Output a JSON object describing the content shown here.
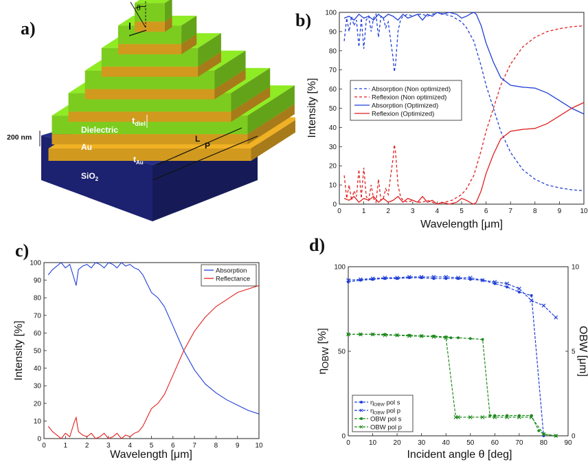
{
  "panel_labels": [
    "a)",
    "b)",
    "c)",
    "d)"
  ],
  "diagram": {
    "angle_label": "θ",
    "l_label": "l",
    "t_diel_label": "t",
    "t_diel_sub": "diel",
    "dielectric_label": "Dielectric",
    "L_label": "L",
    "P_label": "P",
    "thickness_label": "200 nm",
    "au_label": "Au",
    "t_au_label": "t",
    "t_au_sub": "Au",
    "sio2_label": "SiO",
    "sio2_sub": "2",
    "colors": {
      "dielectric": "#7ccc1f",
      "gold": "#d19a1f",
      "substrate": "#1c2270"
    }
  },
  "chart_data": [
    {
      "id": "b",
      "type": "line",
      "xlabel": "Wavelength [μm]",
      "ylabel": "Intensity [%]",
      "xlim": [
        0,
        10
      ],
      "ylim": [
        0,
        100
      ],
      "xticks": [
        0,
        1,
        2,
        3,
        4,
        5,
        6,
        7,
        8,
        9,
        10
      ],
      "yticks": [
        0,
        10,
        20,
        30,
        40,
        50,
        60,
        70,
        80,
        90,
        100
      ],
      "legend_position": "center-left",
      "series": [
        {
          "name": "Absorption (Non optimized)",
          "color": "#1f3fd6",
          "dash": "dashed",
          "x": [
            0.2,
            0.3,
            0.4,
            0.5,
            0.6,
            0.7,
            0.8,
            0.9,
            1.0,
            1.1,
            1.2,
            1.3,
            1.4,
            1.5,
            1.6,
            1.7,
            1.8,
            1.9,
            2.0,
            2.1,
            2.2,
            2.25,
            2.3,
            2.4,
            2.5,
            2.6,
            2.8,
            3.0,
            3.2,
            3.4,
            3.6,
            3.8,
            4.0,
            4.3,
            4.6,
            5.0,
            5.2,
            5.5,
            5.8,
            6.0,
            6.3,
            6.6,
            7.0,
            7.5,
            8.0,
            8.5,
            9.0,
            9.5,
            10.0
          ],
          "y": [
            85,
            97,
            90,
            98,
            93,
            96,
            82,
            97,
            81,
            96,
            98,
            90,
            97,
            99,
            87,
            98,
            97,
            92,
            95,
            85,
            76,
            69,
            73,
            90,
            96,
            98,
            99,
            98,
            99,
            99,
            98,
            99,
            100,
            99,
            98,
            95,
            92,
            85,
            72,
            62,
            50,
            38,
            27,
            18,
            13,
            10,
            8.5,
            7.5,
            7
          ]
        },
        {
          "name": "Reflexion (Non optimized)",
          "color": "#e01f1f",
          "dash": "dashed",
          "x": [
            0.2,
            0.3,
            0.4,
            0.5,
            0.6,
            0.7,
            0.8,
            0.9,
            1.0,
            1.1,
            1.2,
            1.3,
            1.4,
            1.5,
            1.6,
            1.7,
            1.8,
            1.9,
            2.0,
            2.1,
            2.2,
            2.25,
            2.3,
            2.4,
            2.5,
            2.6,
            2.8,
            3.0,
            3.2,
            3.4,
            3.6,
            3.8,
            4.0,
            4.3,
            4.6,
            5.0,
            5.2,
            5.5,
            5.8,
            6.0,
            6.3,
            6.6,
            7.0,
            7.5,
            8.0,
            8.5,
            9.0,
            9.5,
            10.0
          ],
          "y": [
            15,
            3,
            10,
            2,
            7,
            4,
            18,
            3,
            19,
            4,
            2,
            10,
            3,
            1,
            13,
            2,
            3,
            8,
            5,
            15,
            24,
            31,
            27,
            10,
            4,
            2,
            1,
            2,
            1,
            1,
            2,
            1,
            0,
            1,
            2,
            5,
            8,
            15,
            28,
            38,
            50,
            62,
            73,
            82,
            87,
            90,
            91.5,
            92.5,
            93
          ]
        },
        {
          "name": "Absorption (Optimized)",
          "color": "#1f3fd6",
          "dash": "solid",
          "x": [
            0.2,
            0.4,
            0.6,
            0.8,
            1.0,
            1.2,
            1.4,
            1.6,
            1.8,
            2.0,
            2.2,
            2.4,
            2.6,
            2.8,
            3.0,
            3.2,
            3.4,
            3.6,
            3.8,
            4.0,
            4.2,
            4.5,
            4.8,
            5.0,
            5.2,
            5.4,
            5.5,
            5.6,
            5.8,
            6.0,
            6.3,
            6.6,
            7.0,
            7.5,
            8.0,
            8.5,
            9.0,
            9.5,
            10.0
          ],
          "y": [
            97,
            98,
            96,
            99,
            97,
            98,
            96,
            99,
            97,
            99,
            98,
            96,
            99,
            97,
            98,
            99,
            96,
            99,
            98,
            100,
            99,
            100,
            99,
            97,
            98,
            99.5,
            100,
            99,
            93,
            84,
            74,
            66,
            62,
            61,
            60.5,
            58,
            54,
            50,
            47
          ]
        },
        {
          "name": "Reflexion (Optimized)",
          "color": "#e01f1f",
          "dash": "solid",
          "x": [
            0.2,
            0.4,
            0.6,
            0.8,
            1.0,
            1.2,
            1.4,
            1.6,
            1.8,
            2.0,
            2.2,
            2.4,
            2.6,
            2.8,
            3.0,
            3.2,
            3.4,
            3.6,
            3.8,
            4.0,
            4.2,
            4.5,
            4.8,
            5.0,
            5.2,
            5.4,
            5.5,
            5.6,
            5.8,
            6.0,
            6.3,
            6.6,
            7.0,
            7.5,
            8.0,
            8.5,
            9.0,
            9.5,
            10.0
          ],
          "y": [
            3,
            2,
            4,
            1,
            3,
            2,
            4,
            1,
            3,
            1,
            2,
            4,
            1,
            3,
            2,
            1,
            4,
            1,
            2,
            0,
            1,
            0,
            1,
            3,
            2,
            0.5,
            0,
            1,
            7,
            16,
            26,
            34,
            38,
            39,
            39.5,
            42,
            46,
            50,
            53
          ]
        }
      ]
    },
    {
      "id": "c",
      "type": "line",
      "xlabel": "Wavelength [μm]",
      "ylabel": "Intensity [%]",
      "xlim": [
        0,
        10
      ],
      "ylim": [
        0,
        100
      ],
      "xticks": [
        0,
        1,
        2,
        3,
        4,
        5,
        6,
        7,
        8,
        9,
        10
      ],
      "yticks": [
        0,
        10,
        20,
        30,
        40,
        50,
        60,
        70,
        80,
        90,
        100
      ],
      "legend_position": "top-right",
      "series": [
        {
          "name": "Absorption",
          "color": "#1f3fd6",
          "dash": "solid",
          "x": [
            0.2,
            0.4,
            0.6,
            0.8,
            1.0,
            1.2,
            1.4,
            1.5,
            1.6,
            1.8,
            2.0,
            2.2,
            2.4,
            2.6,
            2.8,
            3.0,
            3.2,
            3.4,
            3.6,
            3.8,
            4.0,
            4.2,
            4.4,
            4.6,
            4.8,
            5.0,
            5.3,
            5.6,
            6.0,
            6.5,
            7.0,
            7.5,
            8.0,
            8.5,
            9.0,
            9.5,
            10.0
          ],
          "y": [
            93,
            96,
            98,
            100,
            97,
            99,
            91,
            87,
            96,
            98,
            99,
            97,
            100,
            99,
            97,
            100,
            99,
            97,
            100,
            98,
            99,
            97,
            96,
            93,
            88,
            83,
            80,
            75,
            64,
            50,
            39,
            31,
            26,
            22,
            19,
            16,
            14
          ]
        },
        {
          "name": "Reflectance",
          "color": "#e01f1f",
          "dash": "solid",
          "x": [
            0.2,
            0.4,
            0.6,
            0.8,
            1.0,
            1.2,
            1.4,
            1.5,
            1.6,
            1.8,
            2.0,
            2.2,
            2.4,
            2.6,
            2.8,
            3.0,
            3.2,
            3.4,
            3.6,
            3.8,
            4.0,
            4.2,
            4.4,
            4.6,
            4.8,
            5.0,
            5.3,
            5.6,
            6.0,
            6.5,
            7.0,
            7.5,
            8.0,
            8.5,
            9.0,
            9.5,
            10.0
          ],
          "y": [
            7,
            4,
            2,
            0,
            3,
            1,
            9,
            12,
            4,
            2,
            1,
            3,
            0,
            1,
            3,
            0,
            1,
            3,
            0,
            2,
            1,
            3,
            4,
            7,
            12,
            17,
            20,
            25,
            36,
            50,
            61,
            69,
            75,
            79,
            83,
            85,
            87
          ]
        }
      ]
    },
    {
      "id": "d",
      "type": "line",
      "xlabel": "Incident angle θ [deg]",
      "ylabel_left": "η",
      "ylabel_left_sub": "OBW",
      "ylabel_left_suffix": " [%]",
      "ylabel_right": "OBW [μm]",
      "xlim": [
        0,
        90
      ],
      "ylim_left": [
        0,
        100
      ],
      "ylim_right": [
        0,
        10
      ],
      "xticks": [
        0,
        10,
        20,
        30,
        40,
        50,
        60,
        70,
        80,
        90
      ],
      "yticks_left": [
        0,
        50,
        100
      ],
      "yticks_right": [
        0,
        5,
        10
      ],
      "legend_position": "bottom-left",
      "series": [
        {
          "name_main": "η",
          "name_sub": "OBW",
          "name_rest": " pol s",
          "axis": "left",
          "color": "#1f3fd6",
          "marker": "dot",
          "x": [
            0,
            5,
            10,
            15,
            20,
            25,
            30,
            35,
            40,
            45,
            50,
            55,
            60,
            65,
            70,
            75,
            80
          ],
          "y": [
            91,
            92,
            92.5,
            93,
            93,
            93.5,
            93.5,
            93,
            93,
            93,
            92.5,
            92,
            90,
            88,
            85,
            83,
            0
          ]
        },
        {
          "name_main": "η",
          "name_sub": "OBW",
          "name_rest": " pol p",
          "axis": "left",
          "color": "#1f3fd6",
          "marker": "x",
          "x": [
            0,
            5,
            10,
            15,
            20,
            25,
            30,
            35,
            40,
            45,
            50,
            55,
            60,
            65,
            70,
            75,
            80,
            85
          ],
          "y": [
            92,
            92.5,
            93,
            93.5,
            93.5,
            94,
            94,
            94,
            94,
            93.5,
            93.5,
            92,
            91,
            90,
            87,
            80,
            77,
            70
          ]
        },
        {
          "name_main": "OBW",
          "name_sub": "",
          "name_rest": " pol s",
          "axis": "right",
          "color": "#1f8a1f",
          "marker": "dot",
          "x": [
            0,
            5,
            10,
            15,
            20,
            25,
            30,
            35,
            40,
            42,
            45,
            50,
            55,
            58,
            60,
            65,
            70,
            75,
            78,
            80,
            85
          ],
          "y": [
            6,
            6,
            6,
            6,
            5.95,
            5.95,
            5.9,
            5.9,
            5.85,
            5.8,
            5.8,
            5.75,
            5.7,
            1.2,
            1.2,
            1.2,
            1.2,
            1.2,
            0.3,
            0.1,
            0
          ]
        },
        {
          "name_main": "OBW",
          "name_sub": "",
          "name_rest": " pol p",
          "axis": "right",
          "color": "#1f8a1f",
          "marker": "x",
          "x": [
            0,
            5,
            10,
            15,
            20,
            25,
            30,
            35,
            40,
            44,
            45,
            50,
            55,
            60,
            65,
            70,
            75,
            80,
            85
          ],
          "y": [
            6,
            6,
            6,
            5.95,
            5.95,
            5.9,
            5.9,
            5.85,
            5.8,
            1.1,
            1.1,
            1.1,
            1.1,
            1.1,
            1.1,
            1.1,
            1.1,
            0.1,
            0
          ]
        }
      ]
    }
  ]
}
